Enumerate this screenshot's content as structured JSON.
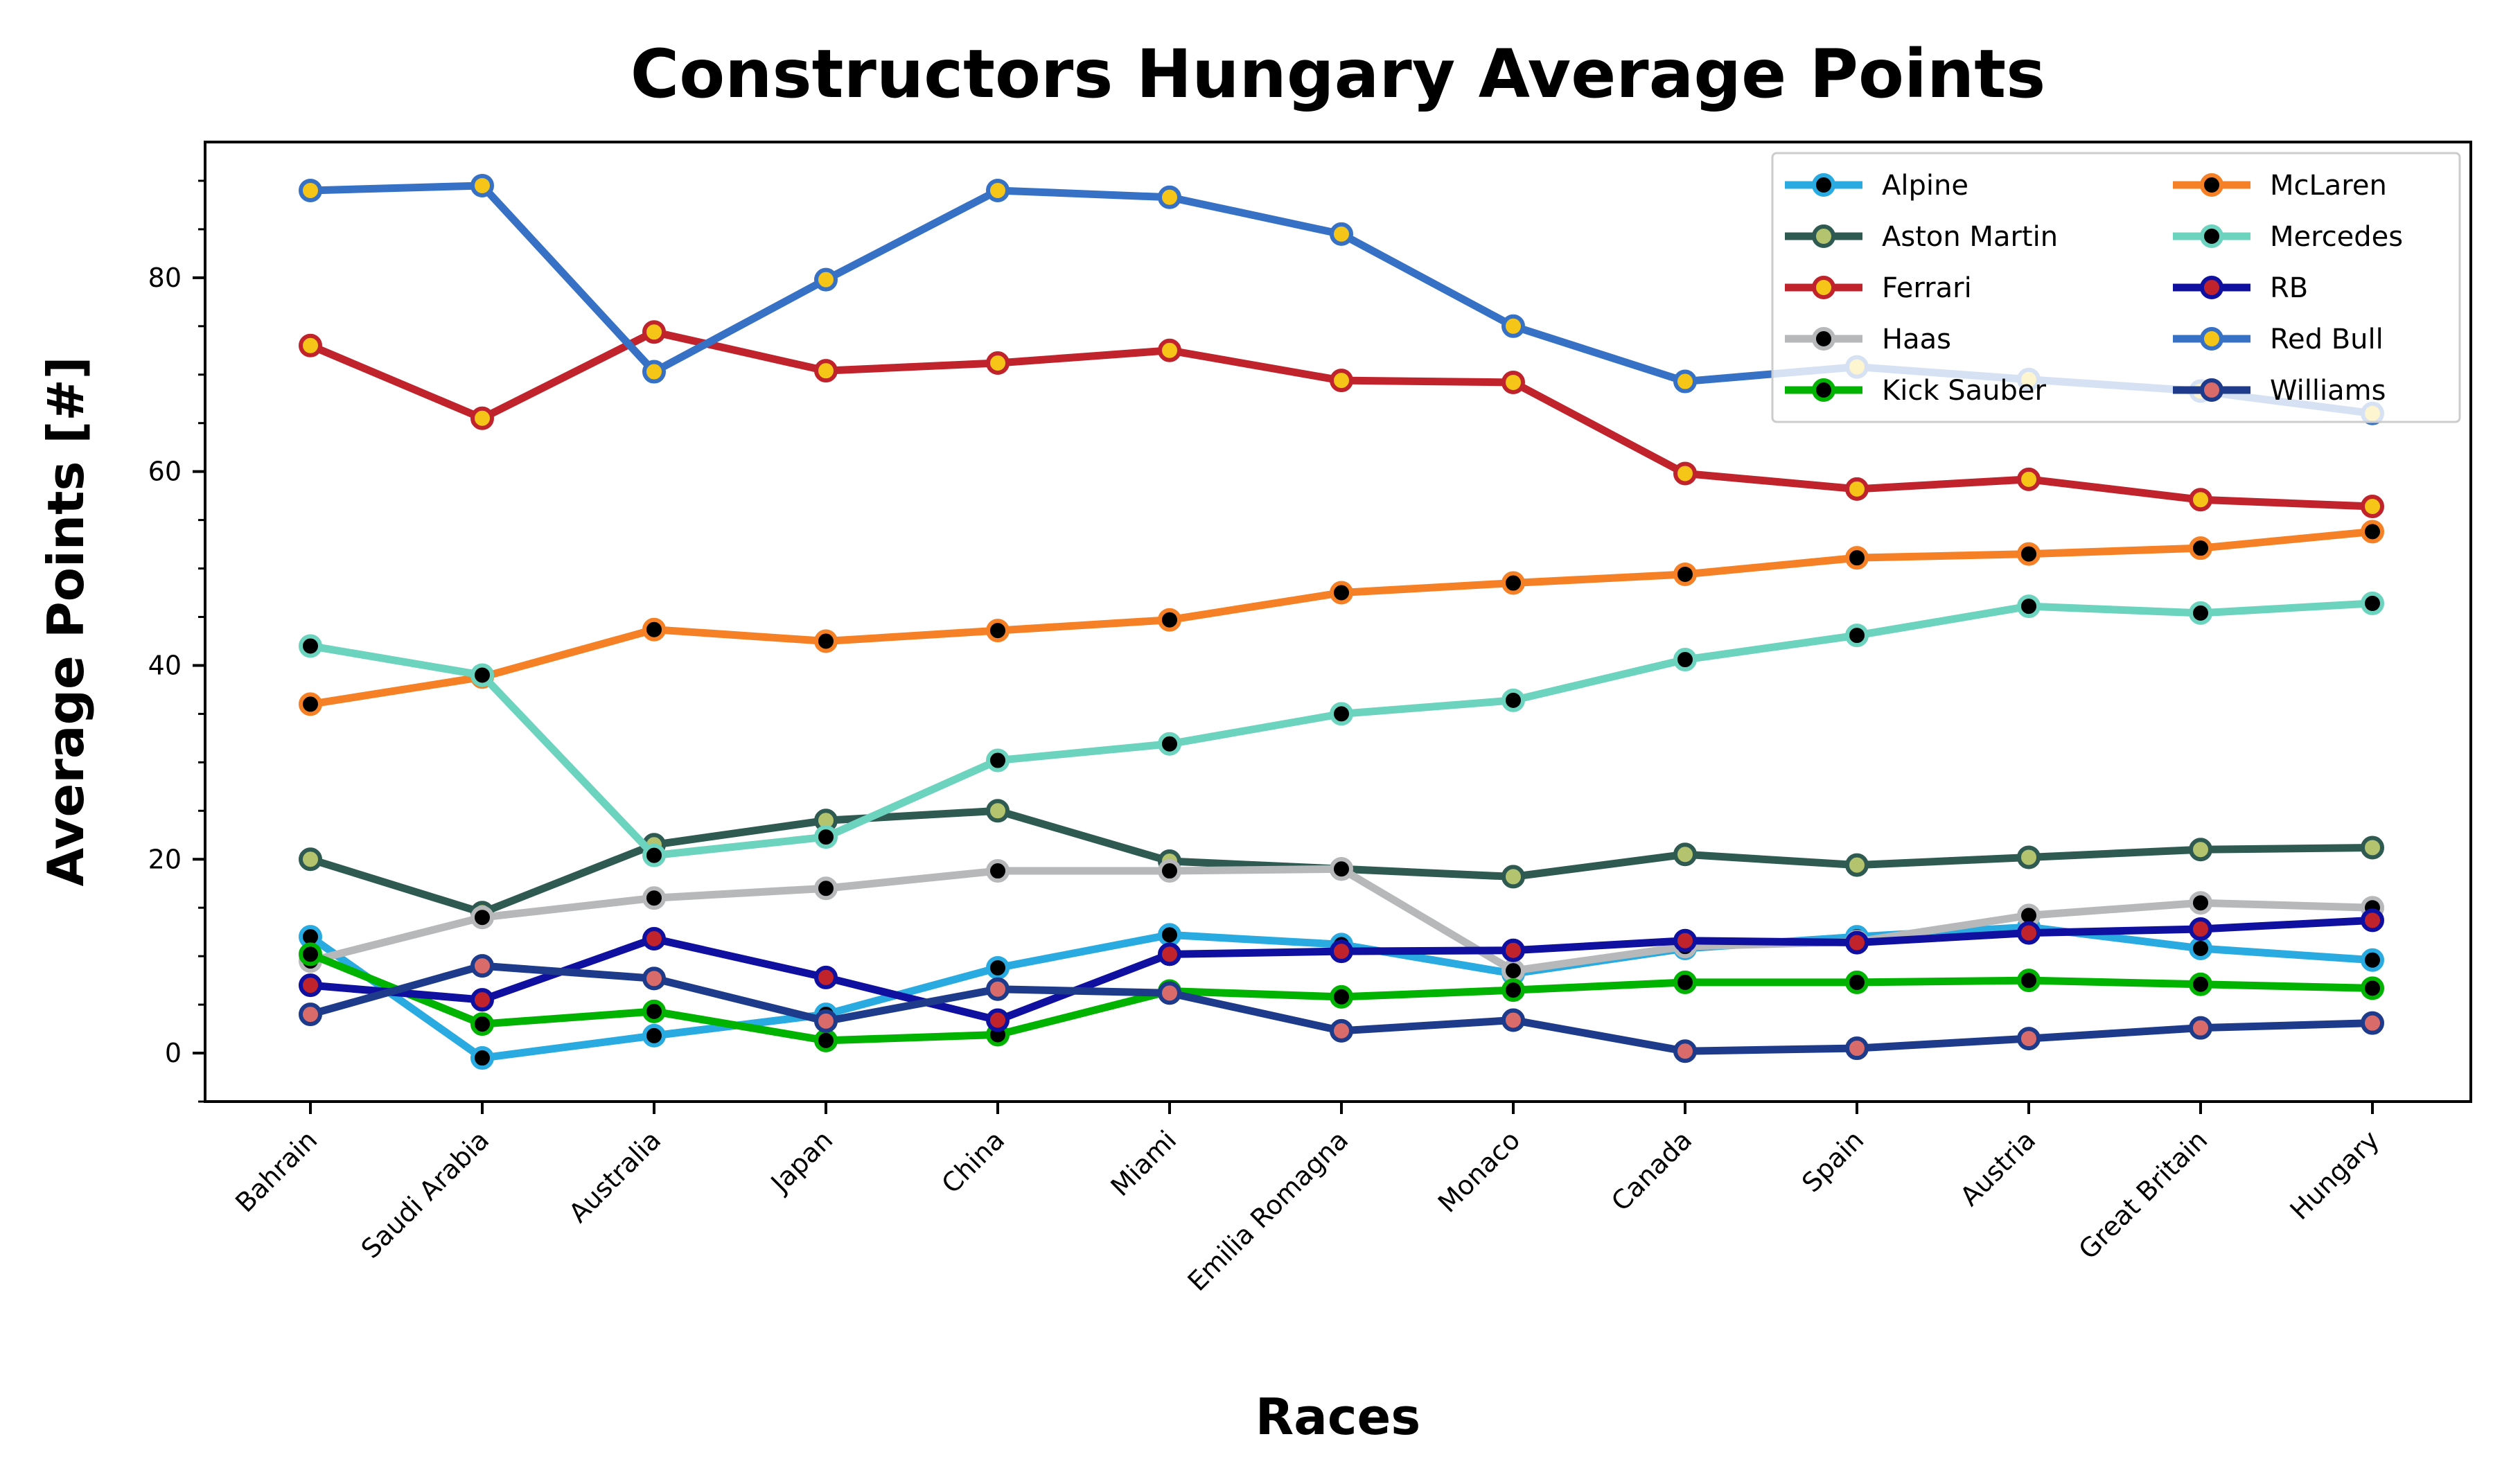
{
  "chart_data": {
    "type": "line",
    "title": "Constructors Hungary Average Points",
    "xlabel": "Races",
    "ylabel": "Average Points [#]",
    "ylim": [
      -5,
      94
    ],
    "yticks": [
      0,
      20,
      40,
      60,
      80
    ],
    "grid": false,
    "legend_position": "top-right",
    "categories": [
      "Bahrain",
      "Saudi Arabia",
      "Australia",
      "Japan",
      "China",
      "Miami",
      "Emilia Romagna",
      "Monaco",
      "Canada",
      "Spain",
      "Austria",
      "Great Britain",
      "Hungary"
    ],
    "series": [
      {
        "name": "Alpine",
        "line_color": "#29abe2",
        "marker_color": "#000000",
        "values": [
          12,
          -0.5,
          1.8,
          4,
          8.8,
          12.2,
          11.2,
          8.2,
          10.8,
          12,
          13,
          10.8,
          9.6
        ]
      },
      {
        "name": "Aston Martin",
        "line_color": "#2f5a52",
        "marker_color": "#b4c46e",
        "values": [
          20,
          14.5,
          21.5,
          24,
          25,
          19.8,
          19,
          18.2,
          20.5,
          19.4,
          20.2,
          21,
          21.2
        ]
      },
      {
        "name": "Ferrari",
        "line_color": "#c0232b",
        "marker_color": "#f5c518",
        "values": [
          73,
          65.5,
          74.4,
          70.4,
          71.2,
          72.5,
          69.4,
          69.2,
          59.8,
          58.2,
          59.2,
          57.1,
          56.4
        ]
      },
      {
        "name": "Haas",
        "line_color": "#b6b8ba",
        "marker_color": "#000000",
        "values": [
          9.5,
          14,
          16,
          17,
          18.8,
          18.8,
          19,
          8.5,
          11,
          11.5,
          14.2,
          15.5,
          15
        ]
      },
      {
        "name": "Kick Sauber",
        "line_color": "#00b300",
        "marker_color": "#000000",
        "values": [
          10.2,
          3,
          4.3,
          1.3,
          1.9,
          6.4,
          5.8,
          6.5,
          7.3,
          7.3,
          7.5,
          7.1,
          6.7
        ]
      },
      {
        "name": "McLaren",
        "line_color": "#f58025",
        "marker_color": "#000000",
        "values": [
          36,
          38.8,
          43.7,
          42.5,
          43.6,
          44.7,
          47.5,
          48.5,
          49.4,
          51.1,
          51.5,
          52.1,
          53.8
        ]
      },
      {
        "name": "Mercedes",
        "line_color": "#6cd3bf",
        "marker_color": "#000000",
        "values": [
          42,
          39,
          20.4,
          22.3,
          30.2,
          31.9,
          35,
          36.4,
          40.6,
          43.1,
          46.1,
          45.4,
          46.4
        ]
      },
      {
        "name": "RB",
        "line_color": "#1010a0",
        "marker_color": "#c0232b",
        "values": [
          7,
          5.5,
          11.8,
          7.8,
          3.4,
          10.2,
          10.5,
          10.6,
          11.6,
          11.4,
          12.4,
          12.8,
          13.7
        ]
      },
      {
        "name": "Red Bull",
        "line_color": "#3671c6",
        "marker_color": "#f5c518",
        "values": [
          89,
          89.5,
          70.3,
          79.8,
          89,
          88.3,
          84.5,
          75,
          69.3,
          70.8,
          69.5,
          68.3,
          66
        ]
      },
      {
        "name": "Williams",
        "line_color": "#1e3a8a",
        "marker_color": "#d96b6b",
        "values": [
          4,
          9,
          7.7,
          3.3,
          6.6,
          6.2,
          2.3,
          3.4,
          0.2,
          0.5,
          1.5,
          2.6,
          3.1
        ]
      }
    ]
  }
}
